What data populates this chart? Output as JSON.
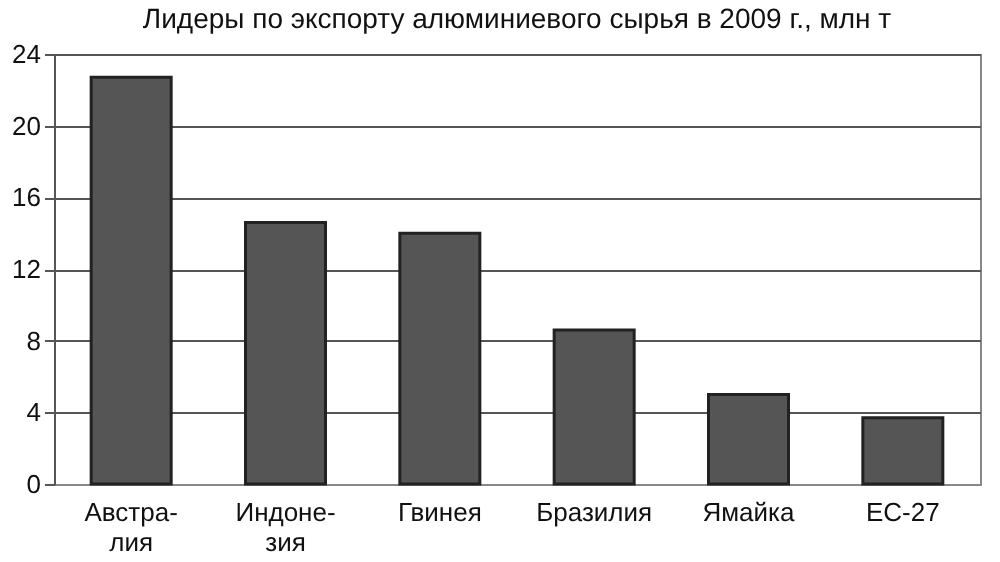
{
  "chart_data": {
    "type": "bar",
    "title": "Лидеры по экспорту алюминиевого сырья в 2009 г., млн т",
    "categories": [
      "Австра-\nлия",
      "Индоне-\nзия",
      "Гвинея",
      "Бразилия",
      "Ямайка",
      "ЕС-27"
    ],
    "values": [
      22.7,
      14.6,
      14.0,
      8.6,
      5.0,
      3.7
    ],
    "color": "#555555",
    "ylim": [
      0,
      24
    ],
    "yticks": [
      0,
      4,
      8,
      12,
      16,
      20,
      24
    ],
    "grid": "y"
  }
}
